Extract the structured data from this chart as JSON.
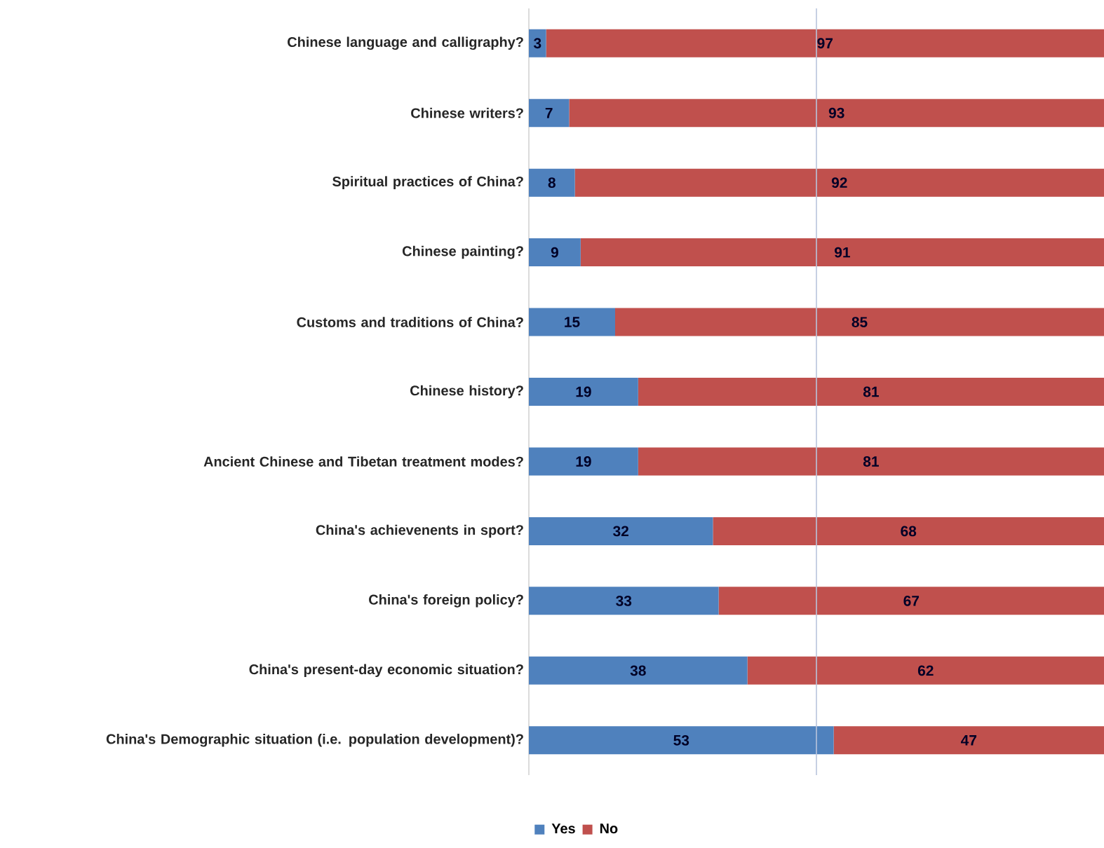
{
  "chart_data": {
    "type": "bar",
    "orientation": "horizontal",
    "stacked": true,
    "data_labels": true,
    "tick_labels": "y",
    "legend": "bottom",
    "ref_lines": [
      {
        "axis": "x",
        "value": 50,
        "color": "#b8c4dc"
      }
    ],
    "categories": [
      "Chinese language and calligraphy?",
      "Chinese writers?",
      "Spiritual practices of China?",
      "Chinese painting?",
      "Customs and traditions of China?",
      "Chinese history?",
      "Ancient Chinese and Tibetan treatment modes?",
      "China's achievenents in sport?",
      "China's foreign policy?",
      "China's present-day economic situation?",
      "China's Demographic situation (i.e. population development)?"
    ],
    "series": [
      {
        "name": "Yes",
        "color": "#4f81bd",
        "values": [
          3,
          7,
          8,
          9,
          15,
          19,
          19,
          32,
          33,
          38,
          53
        ]
      },
      {
        "name": "No",
        "color": "#c0504d",
        "values": [
          97,
          93,
          92,
          91,
          85,
          81,
          81,
          68,
          67,
          62,
          47
        ]
      }
    ]
  }
}
